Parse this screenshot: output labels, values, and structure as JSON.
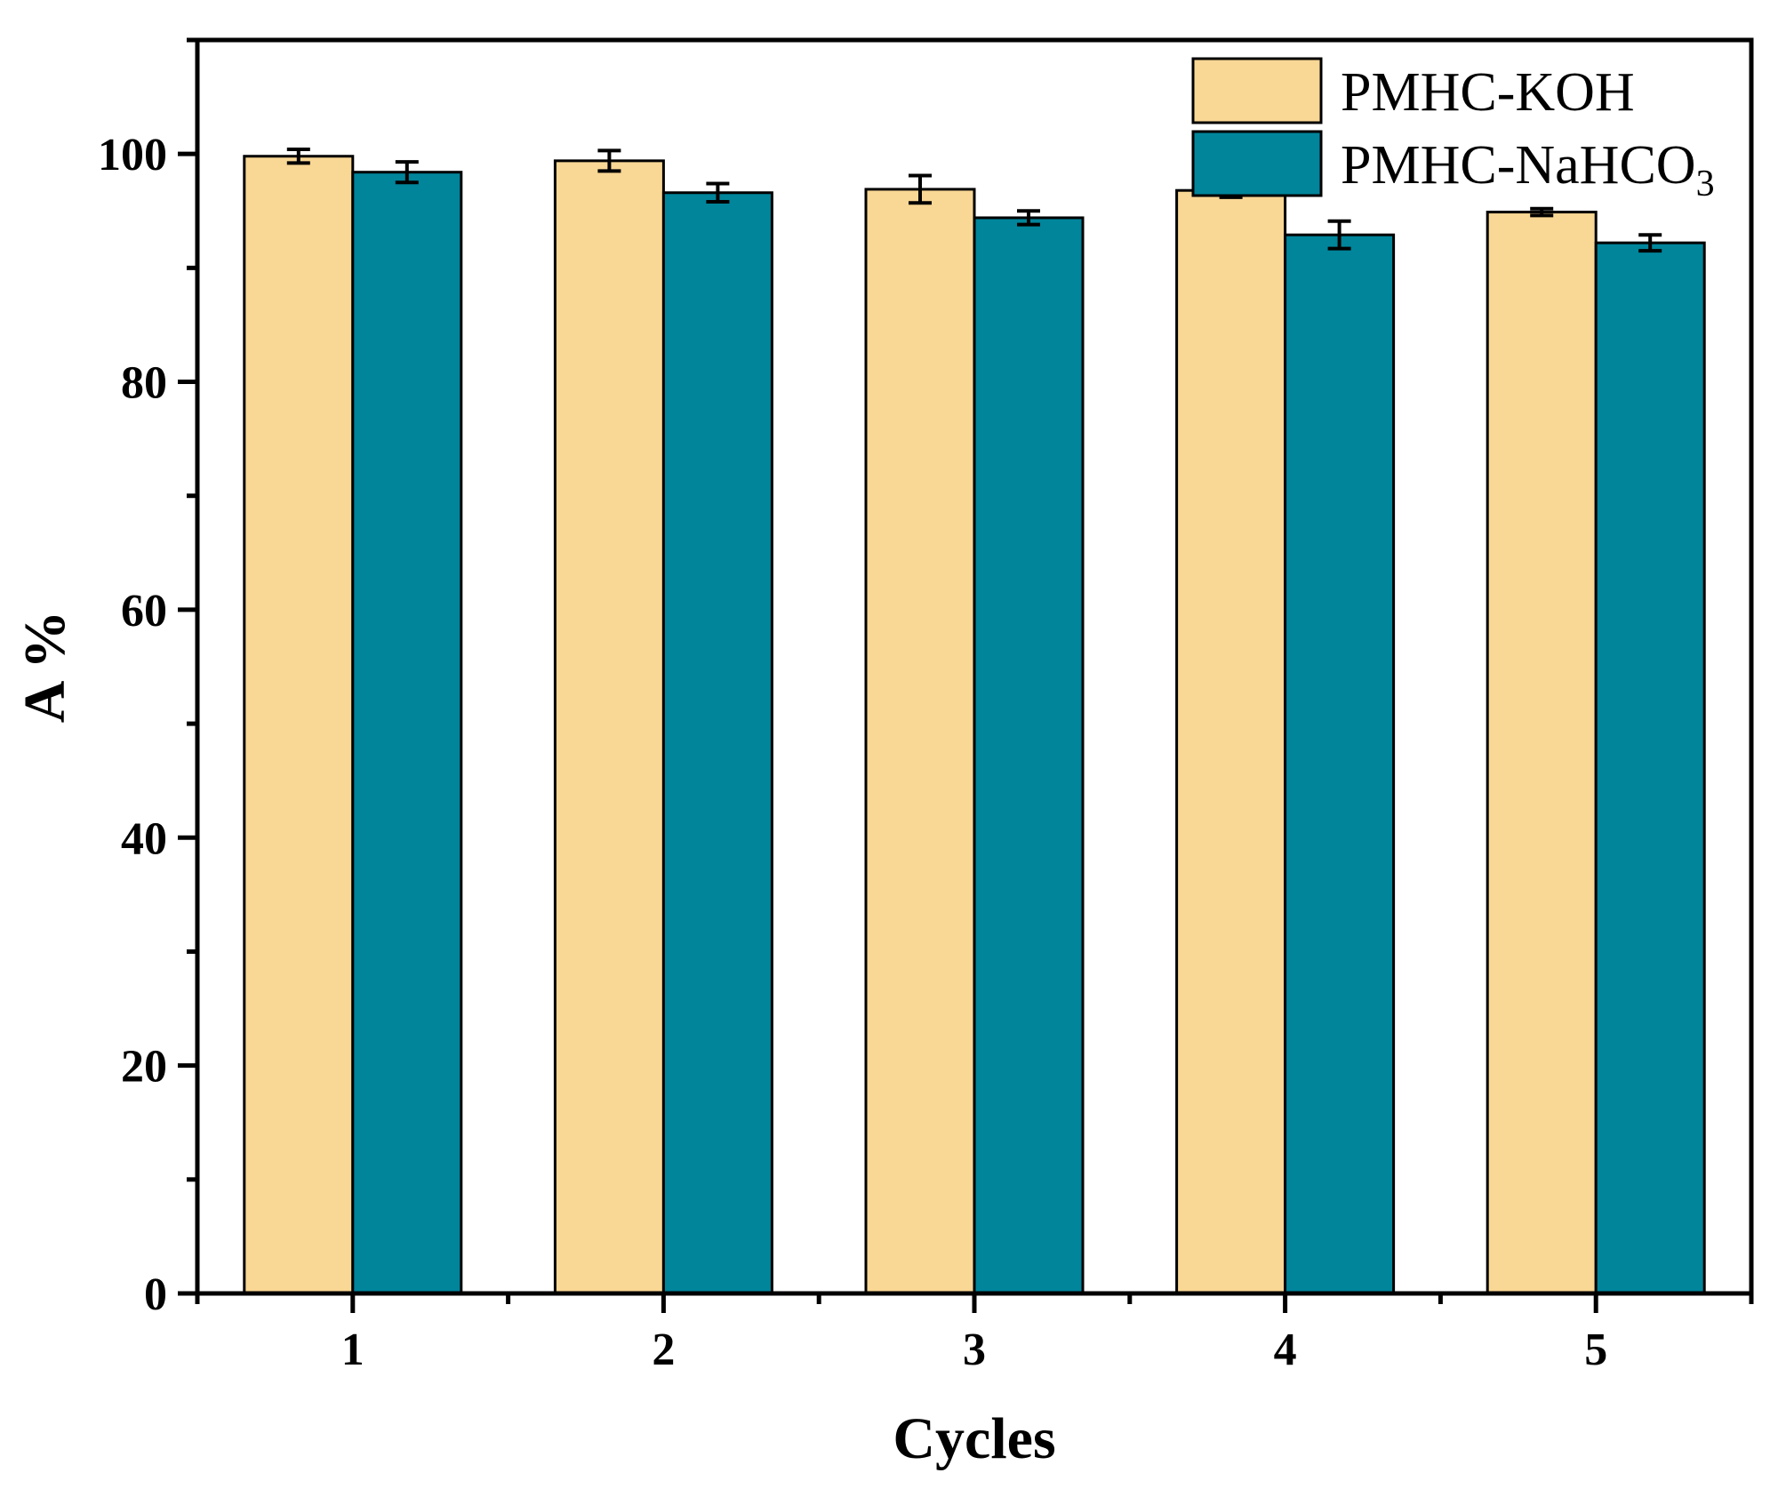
{
  "chart_data": {
    "type": "bar",
    "categories": [
      "1",
      "2",
      "3",
      "4",
      "5"
    ],
    "series": [
      {
        "name": "PMHC-KOH",
        "name_main": "PMHC-KOH",
        "name_sub": "",
        "color": "#F9D794",
        "values": [
          99.8,
          99.4,
          96.9,
          96.8,
          94.9
        ],
        "errors": [
          0.6,
          0.9,
          1.2,
          0.6,
          0.3
        ]
      },
      {
        "name": "PMHC-NaHCO3",
        "name_main": "PMHC-NaHCO",
        "name_sub": "3",
        "color": "#00859B",
        "values": [
          98.4,
          96.6,
          94.4,
          92.9,
          92.2
        ],
        "errors": [
          0.9,
          0.8,
          0.6,
          1.2,
          0.7
        ]
      }
    ],
    "title": "",
    "xlabel": "Cycles",
    "ylabel": "A %",
    "ylim": [
      0,
      110
    ],
    "yticks": [
      0,
      20,
      40,
      60,
      80,
      100
    ],
    "legend": "top-right",
    "grid": false
  }
}
